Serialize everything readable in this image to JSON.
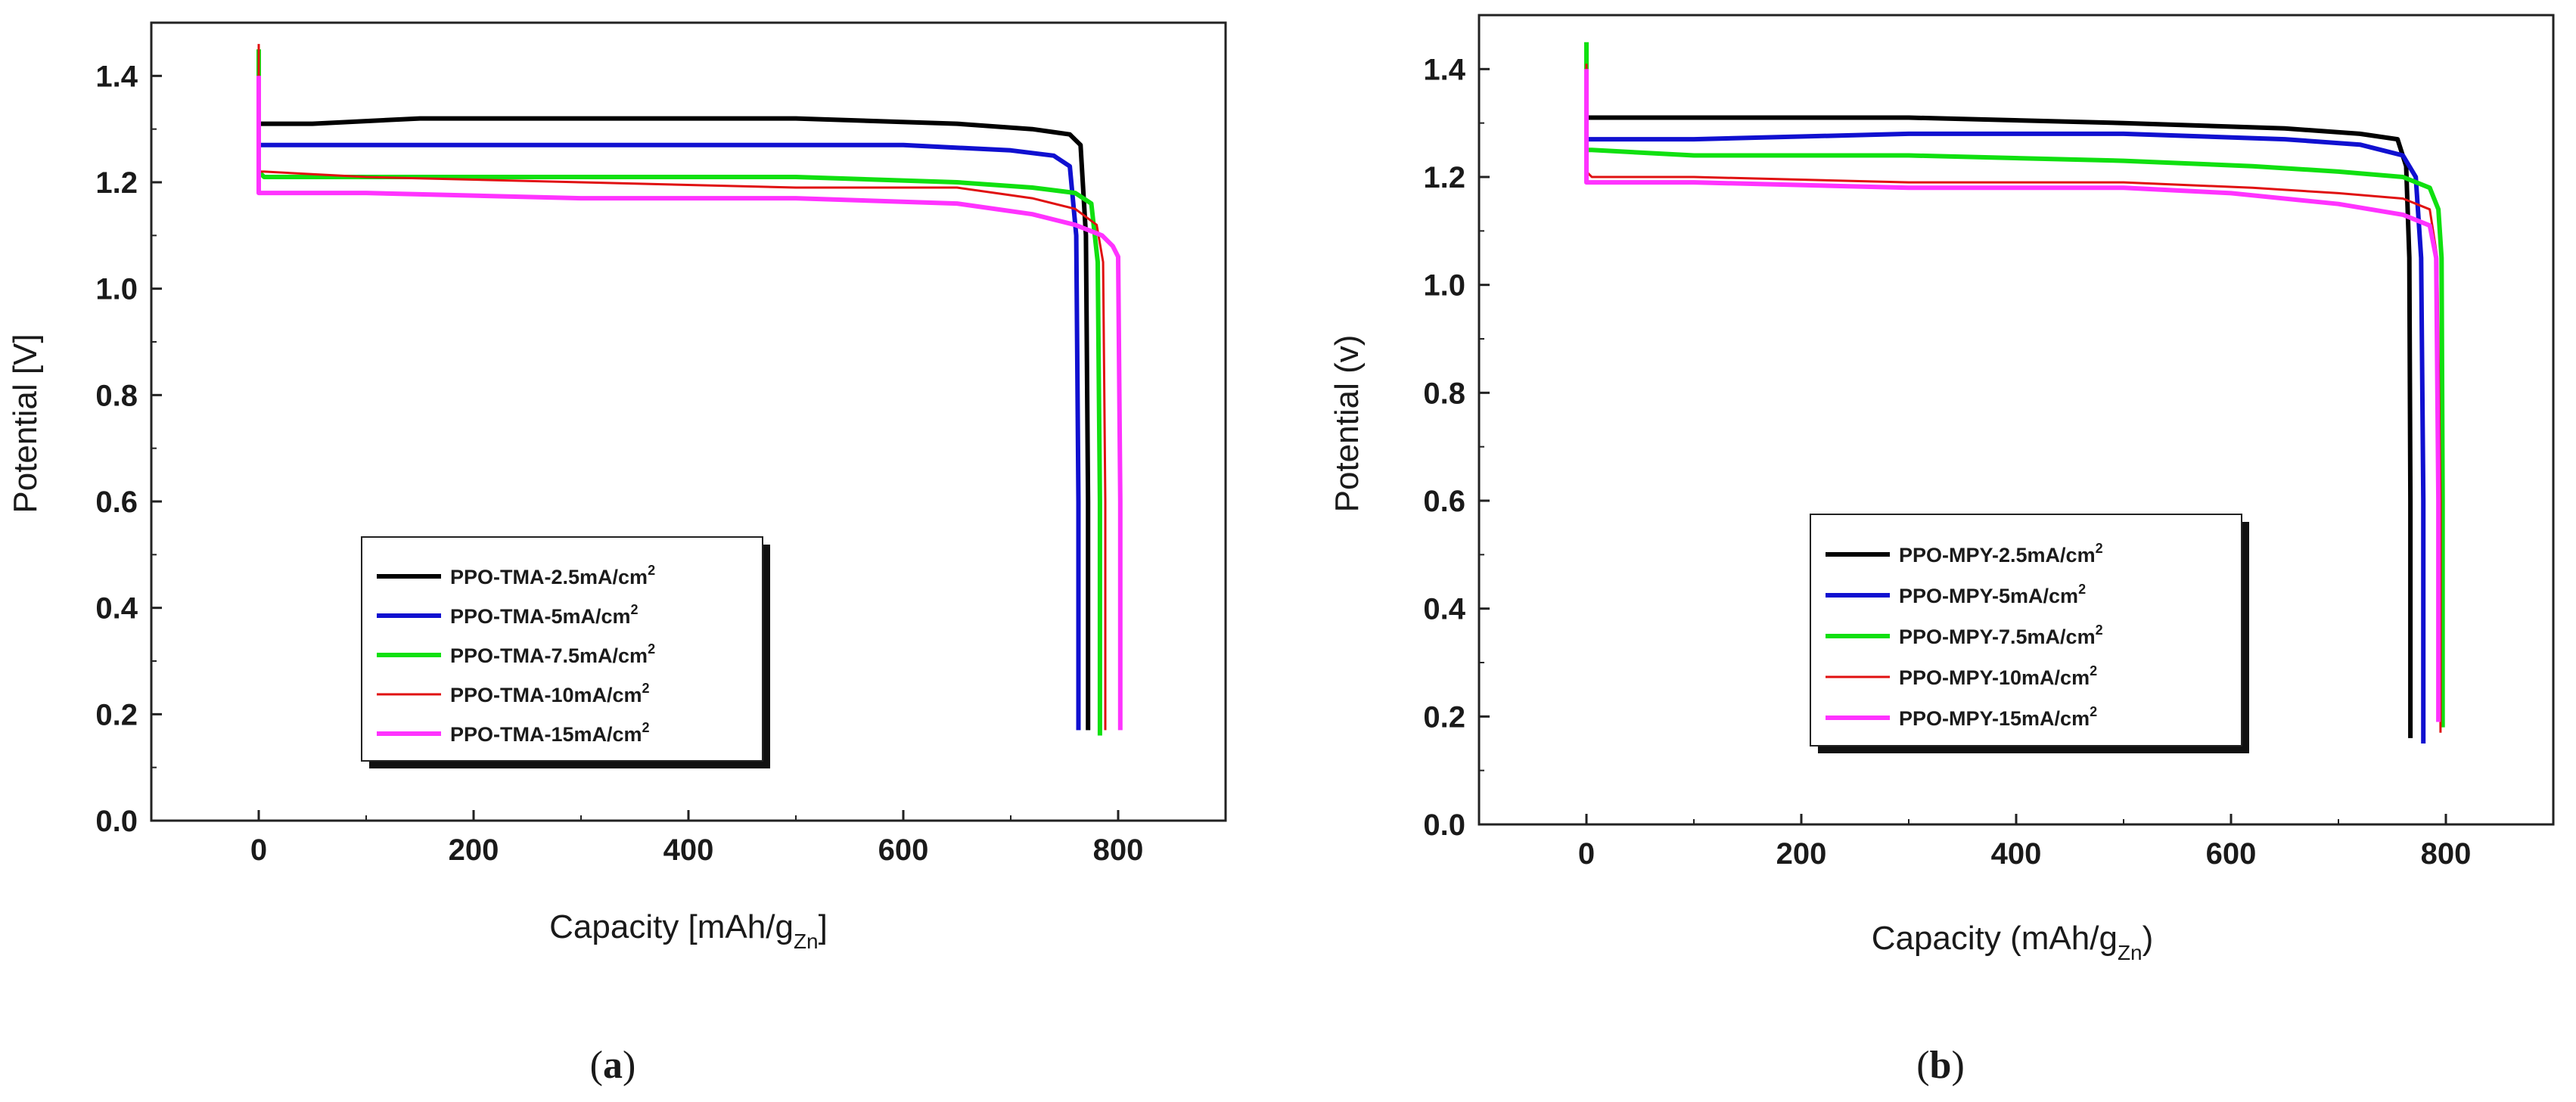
{
  "chart_data": [
    {
      "type": "line",
      "panel": "a",
      "xlabel": "Capacity [mAh/g",
      "xlabel_sub": "Zn",
      "xlabel_tail": "]",
      "ylabel": "Potential [V]",
      "xlim": [
        -100,
        900
      ],
      "ylim": [
        0.0,
        1.5
      ],
      "xticks": [
        0,
        200,
        400,
        600,
        800
      ],
      "xtick_labels": [
        "0",
        "200",
        "400",
        "600",
        "800"
      ],
      "yticks": [
        0.0,
        0.2,
        0.4,
        0.6,
        0.8,
        1.0,
        1.2,
        1.4
      ],
      "ytick_labels": [
        "0.0",
        "0.2",
        "0.4",
        "0.6",
        "0.8",
        "1.0",
        "1.2",
        "1.4"
      ],
      "legend_position": "lower-left",
      "series": [
        {
          "name": "PPO-TMA-2.5mA/cm",
          "sup": "2",
          "color": "#000000",
          "width": 6,
          "x": [
            0,
            0,
            0,
            5,
            50,
            150,
            300,
            500,
            650,
            720,
            755,
            765,
            770,
            772,
            772
          ],
          "y": [
            1.35,
            1.37,
            1.31,
            1.31,
            1.31,
            1.32,
            1.32,
            1.32,
            1.31,
            1.3,
            1.29,
            1.27,
            1.1,
            0.6,
            0.17
          ]
        },
        {
          "name": "PPO-TMA-5mA/cm",
          "sup": "2",
          "color": "#1010d0",
          "width": 6,
          "x": [
            0,
            0,
            5,
            50,
            200,
            400,
            600,
            700,
            740,
            755,
            761,
            763,
            763
          ],
          "y": [
            1.3,
            1.27,
            1.27,
            1.27,
            1.27,
            1.27,
            1.27,
            1.26,
            1.25,
            1.23,
            1.1,
            0.6,
            0.17
          ]
        },
        {
          "name": "PPO-TMA-7.5mA/cm",
          "sup": "2",
          "color": "#10e010",
          "width": 6,
          "x": [
            0,
            0,
            5,
            100,
            300,
            500,
            650,
            720,
            760,
            775,
            781,
            783,
            783
          ],
          "y": [
            1.45,
            1.22,
            1.21,
            1.21,
            1.21,
            1.21,
            1.2,
            1.19,
            1.18,
            1.16,
            1.05,
            0.6,
            0.16
          ]
        },
        {
          "name": "PPO-TMA-10mA/cm",
          "sup": "2",
          "color": "#e01010",
          "width": 3,
          "x": [
            0,
            0,
            5,
            100,
            300,
            500,
            650,
            720,
            760,
            780,
            786,
            788,
            788
          ],
          "y": [
            1.46,
            1.22,
            1.22,
            1.21,
            1.2,
            1.19,
            1.19,
            1.17,
            1.15,
            1.12,
            1.05,
            0.6,
            0.17
          ]
        },
        {
          "name": "PPO-TMA-15mA/cm",
          "sup": "2",
          "color": "#ff33ff",
          "width": 6,
          "x": [
            0,
            0,
            5,
            100,
            300,
            500,
            650,
            720,
            760,
            785,
            795,
            800,
            802,
            802
          ],
          "y": [
            1.4,
            1.18,
            1.18,
            1.18,
            1.17,
            1.17,
            1.16,
            1.14,
            1.12,
            1.1,
            1.08,
            1.06,
            0.6,
            0.17
          ]
        }
      ]
    },
    {
      "type": "line",
      "panel": "b",
      "xlabel": "Capacity (mAh/g",
      "xlabel_sub": "Zn",
      "xlabel_tail": ")",
      "ylabel": "Potential (v)",
      "xlim": [
        -100,
        900
      ],
      "ylim": [
        0.0,
        1.5
      ],
      "xticks": [
        0,
        200,
        400,
        600,
        800
      ],
      "xtick_labels": [
        "0",
        "200",
        "400",
        "600",
        "800"
      ],
      "yticks": [
        0.0,
        0.2,
        0.4,
        0.6,
        0.8,
        1.0,
        1.2,
        1.4
      ],
      "ytick_labels": [
        "0.0",
        "0.2",
        "0.4",
        "0.6",
        "0.8",
        "1.0",
        "1.2",
        "1.4"
      ],
      "legend_position": "lower-center",
      "series": [
        {
          "name": "PPO-MPY-2.5mA/cm",
          "sup": "2",
          "color": "#000000",
          "width": 6,
          "x": [
            0,
            0,
            5,
            100,
            300,
            500,
            650,
            720,
            755,
            763,
            766,
            767,
            767
          ],
          "y": [
            1.32,
            1.31,
            1.31,
            1.31,
            1.31,
            1.3,
            1.29,
            1.28,
            1.27,
            1.22,
            1.05,
            0.6,
            0.16
          ]
        },
        {
          "name": "PPO-MPY-5mA/cm",
          "sup": "2",
          "color": "#1010d0",
          "width": 6,
          "x": [
            0,
            0,
            5,
            100,
            300,
            500,
            650,
            720,
            760,
            772,
            777,
            779,
            779
          ],
          "y": [
            1.29,
            1.27,
            1.27,
            1.27,
            1.28,
            1.28,
            1.27,
            1.26,
            1.24,
            1.2,
            1.05,
            0.6,
            0.15
          ]
        },
        {
          "name": "PPO-MPY-7.5mA/cm",
          "sup": "2",
          "color": "#10e010",
          "width": 6,
          "x": [
            0,
            0,
            5,
            100,
            300,
            500,
            620,
            700,
            760,
            785,
            793,
            796,
            797,
            797
          ],
          "y": [
            1.45,
            1.25,
            1.25,
            1.24,
            1.24,
            1.23,
            1.22,
            1.21,
            1.2,
            1.18,
            1.14,
            1.05,
            0.6,
            0.18
          ]
        },
        {
          "name": "PPO-MPY-10mA/cm",
          "sup": "2",
          "color": "#e01010",
          "width": 3,
          "x": [
            0,
            0,
            5,
            100,
            300,
            500,
            620,
            700,
            760,
            785,
            792,
            795,
            795
          ],
          "y": [
            1.41,
            1.21,
            1.2,
            1.2,
            1.19,
            1.19,
            1.18,
            1.17,
            1.16,
            1.14,
            1.05,
            0.6,
            0.17
          ]
        },
        {
          "name": "PPO-MPY-15mA/cm",
          "sup": "2",
          "color": "#ff33ff",
          "width": 6,
          "x": [
            0,
            0,
            5,
            100,
            300,
            500,
            600,
            700,
            760,
            785,
            791,
            793,
            793
          ],
          "y": [
            1.4,
            1.19,
            1.19,
            1.19,
            1.18,
            1.18,
            1.17,
            1.15,
            1.13,
            1.11,
            1.05,
            0.6,
            0.19
          ]
        }
      ]
    }
  ],
  "captions": {
    "a_open": "(",
    "a_letter": "a",
    "a_close": ")",
    "b_open": "(",
    "b_letter": "b",
    "b_close": ")"
  }
}
